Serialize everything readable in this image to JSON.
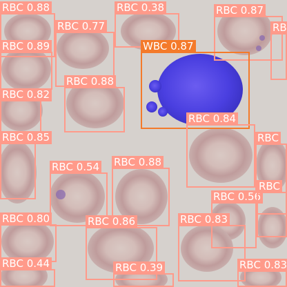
{
  "colors": {
    "rbc": "#ff9a8a",
    "wbc": "#f47a2a"
  },
  "detections": [
    {
      "label": "RBC",
      "score": "0.88"
    },
    {
      "label": "RBC",
      "score": "0.38"
    },
    {
      "label": "RBC",
      "score": "0.87"
    },
    {
      "label": "RBC",
      "score": ""
    },
    {
      "label": "RBC",
      "score": "0.77"
    },
    {
      "label": "RBC",
      "score": "0.89"
    },
    {
      "label": "WBC",
      "score": "0.87"
    },
    {
      "label": "RBC",
      "score": "0.88"
    },
    {
      "label": "RBC",
      "score": "0.82"
    },
    {
      "label": "RBC",
      "score": "0.84"
    },
    {
      "label": "RBC",
      "score": "0.85"
    },
    {
      "label": "RBC",
      "score": ""
    },
    {
      "label": "RBC",
      "score": "0.54"
    },
    {
      "label": "RBC",
      "score": "0.88"
    },
    {
      "label": "RBC",
      "score": "0.56"
    },
    {
      "label": "RBC",
      "score": ""
    },
    {
      "label": "RBC",
      "score": "0.80"
    },
    {
      "label": "RBC",
      "score": "0.86"
    },
    {
      "label": "RBC",
      "score": "0.83"
    },
    {
      "label": "RBC",
      "score": "0.44"
    },
    {
      "label": "RBC",
      "score": "0.39"
    },
    {
      "label": "RBC",
      "score": "0.83"
    }
  ]
}
